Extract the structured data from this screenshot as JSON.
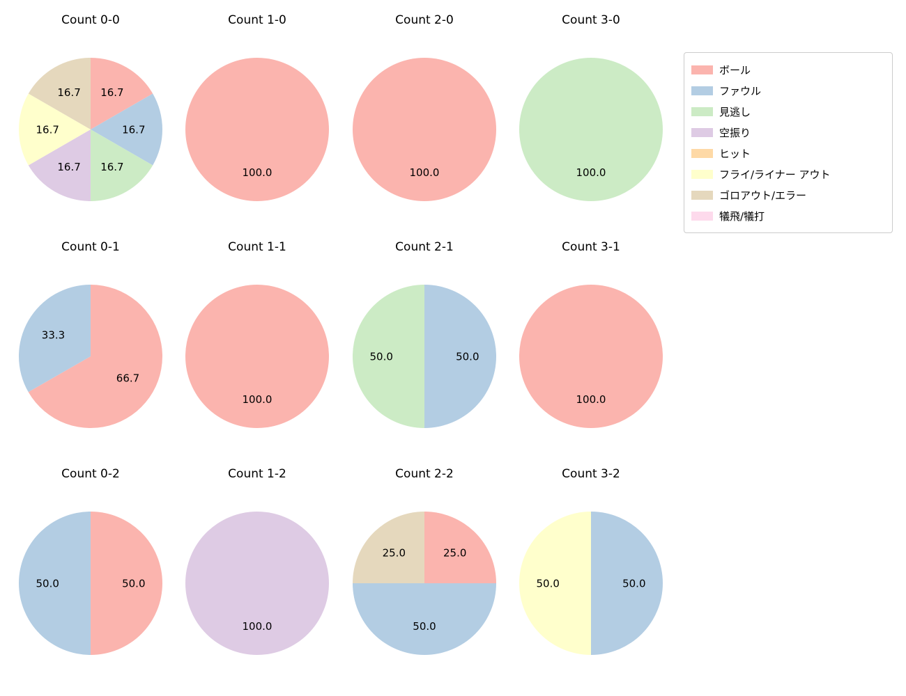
{
  "legend": {
    "items": [
      {
        "label": "ボール",
        "color": "#fbb4ae"
      },
      {
        "label": "ファウル",
        "color": "#b3cde3"
      },
      {
        "label": "見逃し",
        "color": "#ccebc5"
      },
      {
        "label": "空振り",
        "color": "#decbe4"
      },
      {
        "label": "ヒット",
        "color": "#fed9a6"
      },
      {
        "label": "フライ/ライナー アウト",
        "color": "#ffffcc"
      },
      {
        "label": "ゴロアウト/エラー",
        "color": "#e5d8bd"
      },
      {
        "label": "犠飛/犠打",
        "color": "#fddaec"
      }
    ]
  },
  "chart_data": [
    {
      "type": "pie",
      "title": "Count 0-0",
      "start_angle": 90,
      "direction": "clockwise",
      "slices": [
        {
          "label": "ボール",
          "value": 16.7
        },
        {
          "label": "ファウル",
          "value": 16.7
        },
        {
          "label": "見逃し",
          "value": 16.7
        },
        {
          "label": "空振り",
          "value": 16.7
        },
        {
          "label": "フライ/ライナー アウト",
          "value": 16.7
        },
        {
          "label": "ゴロアウト/エラー",
          "value": 16.7
        }
      ]
    },
    {
      "type": "pie",
      "title": "Count 1-0",
      "start_angle": 90,
      "direction": "clockwise",
      "slices": [
        {
          "label": "ボール",
          "value": 100.0
        }
      ]
    },
    {
      "type": "pie",
      "title": "Count 2-0",
      "start_angle": 90,
      "direction": "clockwise",
      "slices": [
        {
          "label": "ボール",
          "value": 100.0
        }
      ]
    },
    {
      "type": "pie",
      "title": "Count 3-0",
      "start_angle": 90,
      "direction": "clockwise",
      "slices": [
        {
          "label": "見逃し",
          "value": 100.0
        }
      ]
    },
    {
      "type": "pie",
      "title": "Count 0-1",
      "start_angle": 90,
      "direction": "clockwise",
      "slices": [
        {
          "label": "ボール",
          "value": 66.7
        },
        {
          "label": "ファウル",
          "value": 33.3
        }
      ]
    },
    {
      "type": "pie",
      "title": "Count 1-1",
      "start_angle": 90,
      "direction": "clockwise",
      "slices": [
        {
          "label": "ボール",
          "value": 100.0
        }
      ]
    },
    {
      "type": "pie",
      "title": "Count 2-1",
      "start_angle": 90,
      "direction": "clockwise",
      "slices": [
        {
          "label": "ファウル",
          "value": 50.0
        },
        {
          "label": "見逃し",
          "value": 50.0
        }
      ]
    },
    {
      "type": "pie",
      "title": "Count 3-1",
      "start_angle": 90,
      "direction": "clockwise",
      "slices": [
        {
          "label": "ボール",
          "value": 100.0
        }
      ]
    },
    {
      "type": "pie",
      "title": "Count 0-2",
      "start_angle": 90,
      "direction": "clockwise",
      "slices": [
        {
          "label": "ボール",
          "value": 50.0
        },
        {
          "label": "ファウル",
          "value": 50.0
        }
      ]
    },
    {
      "type": "pie",
      "title": "Count 1-2",
      "start_angle": 90,
      "direction": "clockwise",
      "slices": [
        {
          "label": "空振り",
          "value": 100.0
        }
      ]
    },
    {
      "type": "pie",
      "title": "Count 2-2",
      "start_angle": 90,
      "direction": "clockwise",
      "slices": [
        {
          "label": "ボール",
          "value": 25.0
        },
        {
          "label": "ファウル",
          "value": 50.0
        },
        {
          "label": "ゴロアウト/エラー",
          "value": 25.0
        }
      ]
    },
    {
      "type": "pie",
      "title": "Count 3-2",
      "start_angle": 90,
      "direction": "clockwise",
      "slices": [
        {
          "label": "ファウル",
          "value": 50.0
        },
        {
          "label": "フライ/ライナー アウト",
          "value": 50.0
        }
      ]
    }
  ]
}
